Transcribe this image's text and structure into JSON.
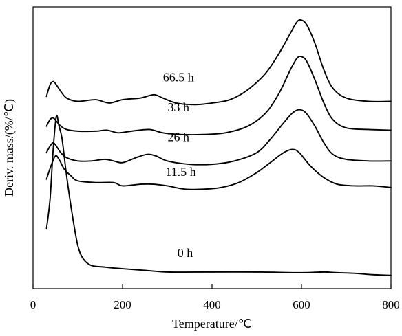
{
  "chart_data": {
    "type": "line",
    "xlabel": "Temperature/℃",
    "ylabel": "Deriv. mass/(%/℃)",
    "xlim": [
      0,
      800
    ],
    "xticks": [
      0,
      200,
      400,
      600,
      800
    ],
    "yticks": [],
    "legend": "none",
    "grid": false,
    "series": [
      {
        "name": "0 h",
        "points": [
          [
            30,
            0.13
          ],
          [
            38,
            0.22
          ],
          [
            45,
            0.37
          ],
          [
            52,
            0.47
          ],
          [
            58,
            0.44
          ],
          [
            65,
            0.4
          ],
          [
            75,
            0.29
          ],
          [
            88,
            0.17
          ],
          [
            100,
            0.08
          ],
          [
            112,
            0.04
          ],
          [
            130,
            0.02
          ],
          [
            160,
            0.015
          ],
          [
            200,
            0.01
          ],
          [
            250,
            0.005
          ],
          [
            300,
            0.0
          ],
          [
            400,
            0.0
          ],
          [
            500,
            0.0
          ],
          [
            600,
            -0.002
          ],
          [
            650,
            0.0
          ],
          [
            680,
            -0.002
          ],
          [
            720,
            -0.004
          ],
          [
            760,
            -0.008
          ],
          [
            800,
            -0.01
          ]
        ]
      },
      {
        "name": "11.5 h",
        "points": [
          [
            30,
            0.28
          ],
          [
            40,
            0.32
          ],
          [
            50,
            0.35
          ],
          [
            58,
            0.34
          ],
          [
            70,
            0.31
          ],
          [
            85,
            0.29
          ],
          [
            100,
            0.275
          ],
          [
            140,
            0.27
          ],
          [
            180,
            0.27
          ],
          [
            200,
            0.26
          ],
          [
            240,
            0.265
          ],
          [
            270,
            0.265
          ],
          [
            300,
            0.26
          ],
          [
            340,
            0.25
          ],
          [
            380,
            0.25
          ],
          [
            420,
            0.255
          ],
          [
            460,
            0.27
          ],
          [
            500,
            0.3
          ],
          [
            530,
            0.33
          ],
          [
            560,
            0.36
          ],
          [
            580,
            0.37
          ],
          [
            595,
            0.36
          ],
          [
            620,
            0.32
          ],
          [
            650,
            0.285
          ],
          [
            680,
            0.265
          ],
          [
            720,
            0.26
          ],
          [
            760,
            0.26
          ],
          [
            800,
            0.255
          ]
        ]
      },
      {
        "name": "26 h",
        "points": [
          [
            30,
            0.36
          ],
          [
            38,
            0.38
          ],
          [
            45,
            0.39
          ],
          [
            52,
            0.38
          ],
          [
            62,
            0.36
          ],
          [
            75,
            0.345
          ],
          [
            100,
            0.335
          ],
          [
            130,
            0.335
          ],
          [
            160,
            0.34
          ],
          [
            180,
            0.335
          ],
          [
            200,
            0.33
          ],
          [
            230,
            0.345
          ],
          [
            255,
            0.355
          ],
          [
            275,
            0.35
          ],
          [
            300,
            0.335
          ],
          [
            350,
            0.325
          ],
          [
            400,
            0.325
          ],
          [
            450,
            0.335
          ],
          [
            500,
            0.36
          ],
          [
            530,
            0.4
          ],
          [
            560,
            0.45
          ],
          [
            580,
            0.48
          ],
          [
            595,
            0.49
          ],
          [
            610,
            0.48
          ],
          [
            630,
            0.44
          ],
          [
            650,
            0.39
          ],
          [
            670,
            0.355
          ],
          [
            700,
            0.34
          ],
          [
            750,
            0.335
          ],
          [
            800,
            0.335
          ]
        ]
      },
      {
        "name": "33 h",
        "points": [
          [
            30,
            0.44
          ],
          [
            38,
            0.46
          ],
          [
            45,
            0.465
          ],
          [
            52,
            0.455
          ],
          [
            62,
            0.44
          ],
          [
            75,
            0.43
          ],
          [
            100,
            0.425
          ],
          [
            140,
            0.425
          ],
          [
            165,
            0.428
          ],
          [
            190,
            0.42
          ],
          [
            220,
            0.425
          ],
          [
            260,
            0.43
          ],
          [
            290,
            0.42
          ],
          [
            330,
            0.415
          ],
          [
            380,
            0.415
          ],
          [
            430,
            0.42
          ],
          [
            480,
            0.44
          ],
          [
            520,
            0.48
          ],
          [
            550,
            0.54
          ],
          [
            575,
            0.61
          ],
          [
            590,
            0.645
          ],
          [
            600,
            0.65
          ],
          [
            612,
            0.635
          ],
          [
            630,
            0.58
          ],
          [
            650,
            0.51
          ],
          [
            670,
            0.46
          ],
          [
            700,
            0.435
          ],
          [
            750,
            0.43
          ],
          [
            800,
            0.428
          ]
        ]
      },
      {
        "name": "66.5 h",
        "points": [
          [
            30,
            0.53
          ],
          [
            38,
            0.565
          ],
          [
            45,
            0.575
          ],
          [
            52,
            0.565
          ],
          [
            62,
            0.545
          ],
          [
            75,
            0.525
          ],
          [
            100,
            0.515
          ],
          [
            140,
            0.52
          ],
          [
            170,
            0.51
          ],
          [
            200,
            0.52
          ],
          [
            240,
            0.525
          ],
          [
            270,
            0.535
          ],
          [
            290,
            0.525
          ],
          [
            320,
            0.51
          ],
          [
            360,
            0.505
          ],
          [
            400,
            0.51
          ],
          [
            440,
            0.52
          ],
          [
            480,
            0.55
          ],
          [
            520,
            0.6
          ],
          [
            550,
            0.66
          ],
          [
            575,
            0.72
          ],
          [
            590,
            0.755
          ],
          [
            600,
            0.76
          ],
          [
            612,
            0.745
          ],
          [
            630,
            0.69
          ],
          [
            650,
            0.61
          ],
          [
            670,
            0.555
          ],
          [
            700,
            0.525
          ],
          [
            750,
            0.515
          ],
          [
            800,
            0.515
          ]
        ]
      }
    ],
    "annotations": [
      {
        "text": "66.5 h",
        "x": 325,
        "y": 0.575
      },
      {
        "text": "33 h",
        "x": 325,
        "y": 0.485
      },
      {
        "text": "26 h",
        "x": 325,
        "y": 0.395
      },
      {
        "text": "11.5 h",
        "x": 330,
        "y": 0.29
      },
      {
        "text": "0 h",
        "x": 340,
        "y": 0.045
      }
    ]
  }
}
